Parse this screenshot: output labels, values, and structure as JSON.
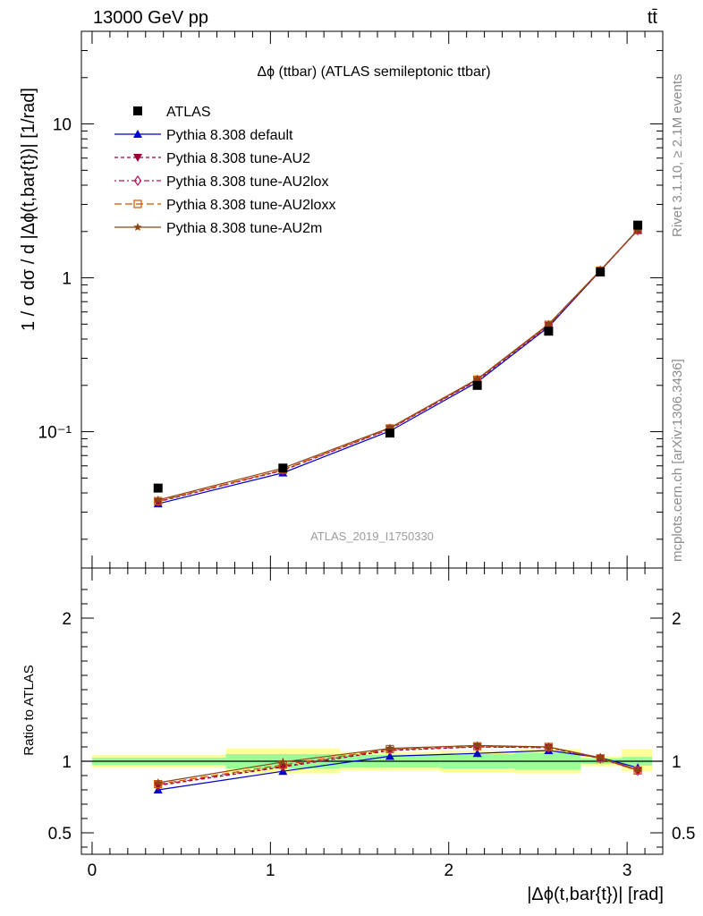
{
  "header": {
    "left": "13000 GeV pp",
    "right": "tt̄"
  },
  "side_labels": {
    "rivet": "Rivet 3.1.10, ≥ 2.1M events",
    "mcplots": "mcplots.cern.ch [arXiv:1306.3436]"
  },
  "watermark": "ATLAS_2019_I1750330",
  "chart_data": [
    {
      "type": "line",
      "title": "Δϕ (ttbar) (ATLAS semileptonic ttbar)",
      "ylabel": "1 / σ dσ / d |Δϕ(t,bar{t})| [1/rad]",
      "yscale": "log",
      "ylim": [
        0.013,
        40
      ],
      "xlim": [
        -0.06,
        3.2
      ],
      "y_ticks": [
        "10⁻¹",
        "1",
        "10"
      ],
      "legend_position": "top-left",
      "x": [
        0.37,
        1.07,
        1.67,
        2.16,
        2.56,
        2.85,
        3.06
      ],
      "data": {
        "name": "ATLAS",
        "color": "#000000",
        "values": [
          0.043,
          0.058,
          0.098,
          0.2,
          0.45,
          1.09,
          2.2
        ]
      },
      "series": [
        {
          "name": "Pythia 8.308 default",
          "color": "#0000cc",
          "marker": "triangle-up",
          "dash": "solid",
          "values": [
            0.034,
            0.054,
            0.101,
            0.21,
            0.48,
            1.11,
            2.05
          ]
        },
        {
          "name": "Pythia 8.308 tune-AU2",
          "color": "#990033",
          "marker": "triangle-down",
          "dash": "4,3",
          "values": [
            0.035,
            0.056,
            0.104,
            0.215,
            0.49,
            1.11,
            2.04
          ]
        },
        {
          "name": "Pythia 8.308 tune-AU2lox",
          "color": "#bb1155",
          "marker": "diamond",
          "dash": "2,3,6,3",
          "values": [
            0.0352,
            0.0562,
            0.104,
            0.216,
            0.49,
            1.11,
            2.04
          ]
        },
        {
          "name": "Pythia 8.308 tune-AU2loxx",
          "color": "#cc5500",
          "marker": "square-open",
          "dash": "8,4",
          "values": [
            0.0354,
            0.0566,
            0.105,
            0.218,
            0.495,
            1.115,
            2.04
          ]
        },
        {
          "name": "Pythia 8.308 tune-AU2m",
          "color": "#8b4513",
          "marker": "star",
          "dash": "solid",
          "values": [
            0.036,
            0.058,
            0.106,
            0.22,
            0.5,
            1.12,
            2.05
          ]
        }
      ]
    },
    {
      "type": "line",
      "ylabel": "Ratio to ATLAS",
      "xlabel": "|Δϕ(t,bar{t})| [rad]",
      "ylim": [
        0.35,
        2.35
      ],
      "xlim": [
        -0.06,
        3.2
      ],
      "x_ticks": [
        "0",
        "1",
        "2",
        "3"
      ],
      "y_ticks": [
        "0.5",
        "1",
        "2"
      ],
      "bands": [
        {
          "xlo": 0.0,
          "xhi": 0.75,
          "green": [
            0.975,
            1.025
          ],
          "yellow": [
            0.955,
            1.045
          ]
        },
        {
          "xlo": 0.75,
          "xhi": 1.39,
          "green": [
            0.95,
            1.05
          ],
          "yellow": [
            0.915,
            1.09
          ]
        },
        {
          "xlo": 1.39,
          "xhi": 1.95,
          "green": [
            0.955,
            1.045
          ],
          "yellow": [
            0.935,
            1.065
          ]
        },
        {
          "xlo": 1.95,
          "xhi": 2.37,
          "green": [
            0.95,
            1.05
          ],
          "yellow": [
            0.925,
            1.075
          ]
        },
        {
          "xlo": 2.37,
          "xhi": 2.74,
          "green": [
            0.94,
            1.06
          ],
          "yellow": [
            0.915,
            1.085
          ]
        },
        {
          "xlo": 2.74,
          "xhi": 2.97,
          "green": [
            0.98,
            1.02
          ],
          "yellow": [
            0.965,
            1.035
          ]
        },
        {
          "xlo": 2.97,
          "xhi": 3.14,
          "green": [
            0.97,
            1.03
          ],
          "yellow": [
            0.93,
            1.085
          ]
        }
      ],
      "series": [
        {
          "name": "Pythia 8.308 default",
          "values": [
            0.8,
            0.93,
            1.035,
            1.055,
            1.075,
            1.025,
            0.955
          ]
        },
        {
          "name": "Pythia 8.308 tune-AU2",
          "values": [
            0.83,
            0.96,
            1.075,
            1.1,
            1.095,
            1.02,
            0.935
          ]
        },
        {
          "name": "Pythia 8.308 tune-AU2lox",
          "values": [
            0.835,
            0.965,
            1.08,
            1.1,
            1.095,
            1.02,
            0.935
          ]
        },
        {
          "name": "Pythia 8.308 tune-AU2loxx",
          "values": [
            0.84,
            0.975,
            1.085,
            1.105,
            1.1,
            1.02,
            0.935
          ]
        },
        {
          "name": "Pythia 8.308 tune-AU2m",
          "values": [
            0.85,
            0.995,
            1.09,
            1.11,
            1.1,
            1.025,
            0.94
          ]
        }
      ]
    }
  ]
}
